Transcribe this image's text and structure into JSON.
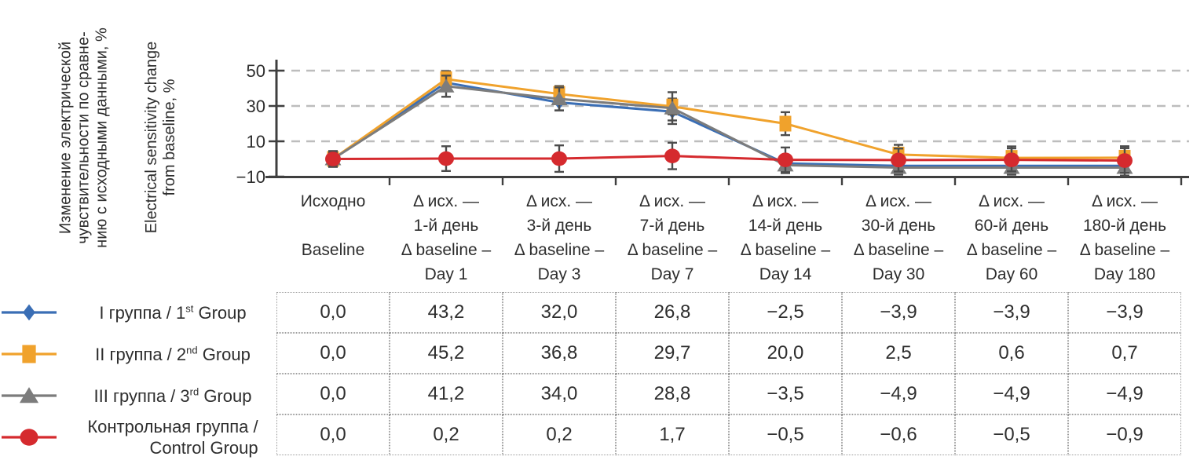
{
  "colors": {
    "group1_blue": "#3A6EB5",
    "group2_orange": "#F0A22C",
    "group3_gray": "#7C7C7C",
    "control_red": "#D52A2E",
    "axis": "#3F3F3F",
    "grid": "#BDBDBD",
    "error_bar": "#4C4C4C",
    "table_border": "#9E9E9E",
    "text": "#2E2E2E"
  },
  "y_axis": {
    "title_ru_lines": [
      "Изменение электрической",
      "чувствительности по сравне-",
      "нию с исходными данными, %"
    ],
    "title_en_lines": [
      "Electrical sensitivity change",
      "from baseline, %"
    ],
    "ticks": [
      {
        "label": "50",
        "value": 50
      },
      {
        "label": "30",
        "value": 30
      },
      {
        "label": "10",
        "value": 10
      },
      {
        "label": "−10",
        "value": -10
      }
    ]
  },
  "chart_data": {
    "type": "line",
    "title": "",
    "ylabel_ru": "Изменение электрической чувствительности по сравнению с исходными данными, %",
    "ylabel_en": "Electrical sensitivity change from baseline, %",
    "ylim": [
      -10,
      55
    ],
    "gridlines": {
      "orientation": "horizontal",
      "style": "dashed",
      "at": [
        10,
        30,
        50
      ]
    },
    "legend_position": "left-of-table-rows",
    "categories": [
      {
        "lines": [
          "Исходно",
          "",
          "Baseline",
          ""
        ]
      },
      {
        "lines": [
          "Δ исх. —",
          "1-й день",
          "Δ baseline –",
          "Day 1"
        ]
      },
      {
        "lines": [
          "Δ исх. —",
          "3-й день",
          "Δ baseline –",
          "Day 3"
        ]
      },
      {
        "lines": [
          "Δ исх. —",
          "7-й день",
          "Δ baseline –",
          "Day 7"
        ]
      },
      {
        "lines": [
          "Δ исх. —",
          "14-й день",
          "Δ baseline –",
          "Day 14"
        ]
      },
      {
        "lines": [
          "Δ исх. —",
          "30-й день",
          "Δ baseline –",
          "Day 30"
        ]
      },
      {
        "lines": [
          "Δ исх. —",
          "60-й день",
          "Δ baseline –",
          "Day 60"
        ]
      },
      {
        "lines": [
          "Δ исх. —",
          "180-й день",
          "Δ baseline –",
          "Day 180"
        ]
      }
    ],
    "series": [
      {
        "id": "group1",
        "legend": "I группа / 1{st} Group",
        "marker": "diamond",
        "color": "#3A6EB5",
        "values": [
          0.0,
          43.2,
          32.0,
          26.8,
          -2.5,
          -3.9,
          -3.9,
          -3.9
        ],
        "errors": [
          3.5,
          4.5,
          4.5,
          5,
          4.5,
          4,
          4,
          4
        ],
        "display_values": [
          "0,0",
          "43,2",
          "32,0",
          "26,8",
          "−2,5",
          "−3,9",
          "−3,9",
          "−3,9"
        ]
      },
      {
        "id": "group2",
        "legend": "II группа / 2{nd} Group",
        "marker": "square",
        "color": "#F0A22C",
        "values": [
          0.0,
          45.2,
          36.8,
          29.7,
          20.0,
          2.5,
          0.6,
          0.7
        ],
        "errors": [
          4,
          4.5,
          4.5,
          4.5,
          6.5,
          5.5,
          6.5,
          6.5
        ],
        "display_values": [
          "0,0",
          "45,2",
          "36,8",
          "29,7",
          "20,0",
          "2,5",
          "0,6",
          "0,7"
        ]
      },
      {
        "id": "group3",
        "legend": "III группа / 3{rd} Group",
        "marker": "triangle",
        "color": "#7C7C7C",
        "values": [
          0.0,
          41.2,
          34.0,
          28.8,
          -3.5,
          -4.9,
          -4.9,
          -4.9
        ],
        "errors": [
          3.5,
          6,
          6.5,
          9,
          4.5,
          4,
          4,
          4.5
        ],
        "display_values": [
          "0,0",
          "41,2",
          "34,0",
          "28,8",
          "−3,5",
          "−4,9",
          "−4,9",
          "−4,9"
        ]
      },
      {
        "id": "control",
        "legend": "Контрольная группа /\nControl Group",
        "marker": "circle",
        "color": "#D52A2E",
        "values": [
          0.0,
          0.2,
          0.2,
          1.7,
          -0.5,
          -0.6,
          -0.5,
          -0.9
        ],
        "errors": [
          4.5,
          7,
          7.5,
          7.5,
          7,
          6.5,
          6.5,
          7
        ],
        "display_values": [
          "0,0",
          "0,2",
          "0,2",
          "1,7",
          "−0,5",
          "−0,6",
          "−0,5",
          "−0,9"
        ]
      }
    ]
  }
}
